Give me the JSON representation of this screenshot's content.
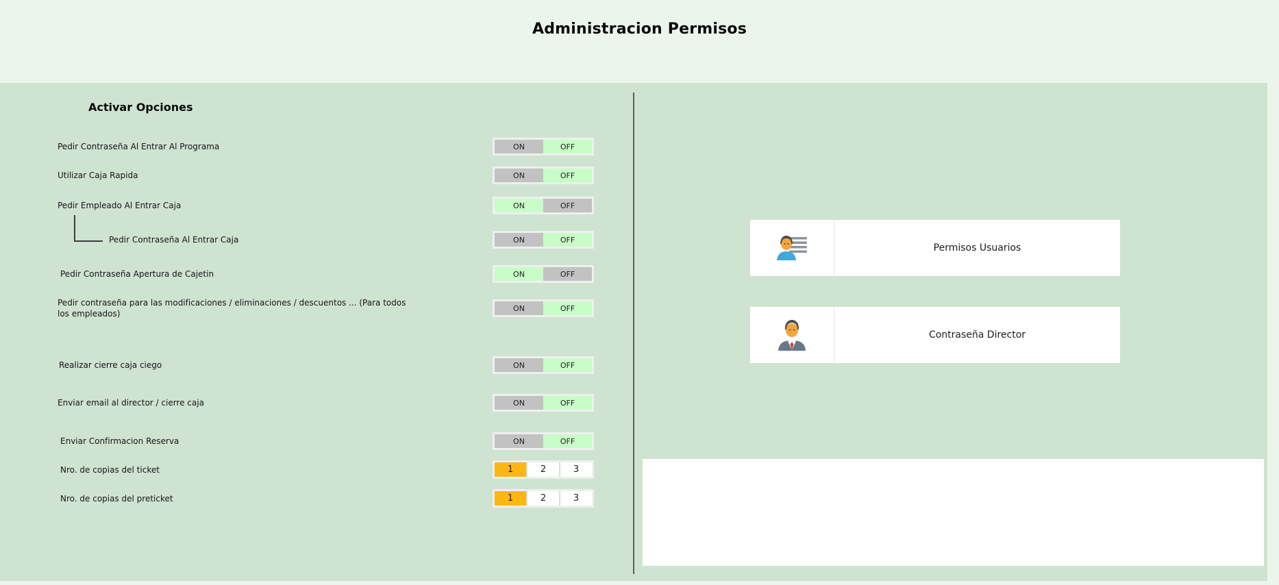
{
  "title": "Administracion Permisos",
  "left_panel": {
    "heading": "Activar Opciones",
    "toggle_on_label": "ON",
    "toggle_off_label": "OFF",
    "copy_values": [
      "1",
      "2",
      "3"
    ],
    "options": [
      {
        "label": "Pedir Contraseña Al Entrar Al Programa",
        "type": "toggle",
        "state": "off",
        "sub": false
      },
      {
        "label": "Utilizar Caja Rapida",
        "type": "toggle",
        "state": "off",
        "sub": false
      },
      {
        "label": "Pedir Empleado Al Entrar Caja",
        "type": "toggle",
        "state": "on",
        "sub": false
      },
      {
        "label": "Pedir Contraseña Al Entrar Caja",
        "type": "toggle",
        "state": "off",
        "sub": true
      },
      {
        "label": "Pedir Contraseña Apertura de Cajetin",
        "type": "toggle",
        "state": "on",
        "sub": false
      },
      {
        "label": "Pedir contraseña para las modificaciones / eliminaciones / descuentos ... (Para todos los empleados)",
        "type": "toggle",
        "state": "off",
        "sub": false
      },
      {
        "label": "Realizar cierre caja ciego",
        "type": "toggle",
        "state": "off",
        "sub": false
      },
      {
        "label": "Enviar email al director / cierre caja",
        "type": "toggle",
        "state": "off",
        "sub": false
      },
      {
        "label": "Enviar Confirmacion Reserva",
        "type": "toggle",
        "state": "off",
        "sub": false
      },
      {
        "label": "Nro. de copias del ticket",
        "type": "copies",
        "value": "1",
        "sub": false
      },
      {
        "label": "Nro. de copias del preticket",
        "type": "copies",
        "value": "1",
        "sub": false
      }
    ]
  },
  "right_panel": {
    "buttons": [
      {
        "label": "Permisos Usuarios",
        "icon": "user-list-icon"
      },
      {
        "label": "Contraseña Director",
        "icon": "director-icon"
      }
    ]
  },
  "colors": {
    "page_bg": "#ecf5ec",
    "panel_bg": "#cfe3d1",
    "toggle_gray": "#c2c2c2",
    "toggle_green": "#c8fdc8",
    "copy_orange": "#fcb712",
    "control_border": "#efefef"
  }
}
